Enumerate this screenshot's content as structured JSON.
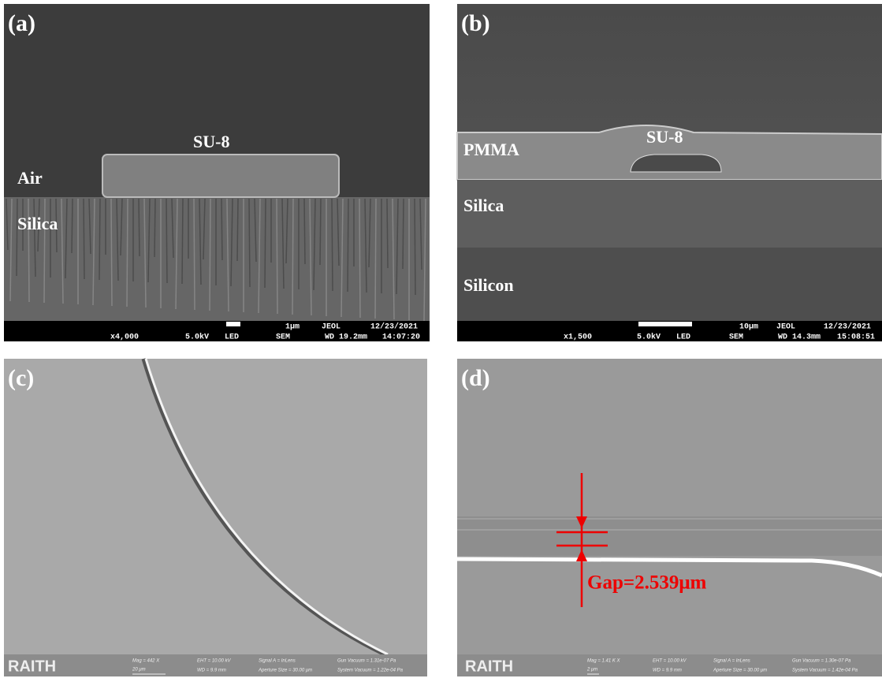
{
  "panels": [
    {
      "label": "(a)",
      "annotations": [
        "SU-8",
        "Air",
        "Silica"
      ],
      "info_bar": [
        "1μm",
        "JEOL",
        "12/23/2021",
        "x4,000",
        "5.0kV",
        "LED",
        "SEM",
        "WD 19.2mm",
        "14:07:20"
      ]
    },
    {
      "label": "(b)",
      "annotations": [
        "PMMA",
        "SU-8",
        "Silica",
        "Silicon"
      ],
      "info_bar": [
        "10μm",
        "JEOL",
        "12/23/2021",
        "x1,500",
        "5.0kV",
        "LED",
        "SEM",
        "WD 14.3mm",
        "15:08:51"
      ]
    },
    {
      "label": "(c)",
      "info_bar": [
        "RAITH",
        "Mag =  442 X",
        "20 μm",
        "EHT = 10.00 kV",
        "WD =  9.9 mm",
        "Signal A = InLens",
        "Aperture Size = 30.00 μm",
        "Gun Vacuum = 1.31e-07 Pa",
        "System Vacuum = 1.22e-04 Pa"
      ]
    },
    {
      "label": "(d)",
      "annotations": [
        "Gap=2.539μm"
      ],
      "info_bar": [
        "RAITH",
        "Mag =  1.41 K X",
        "2 μm",
        "EHT = 10.00 kV",
        "WD =  9.9 mm",
        "Signal A = InLens",
        "Aperture Size = 30.00 μm",
        "Gun Vacuum = 1.30e-07 Pa",
        "System Vacuum = 1.42e-04 Pa"
      ]
    }
  ]
}
